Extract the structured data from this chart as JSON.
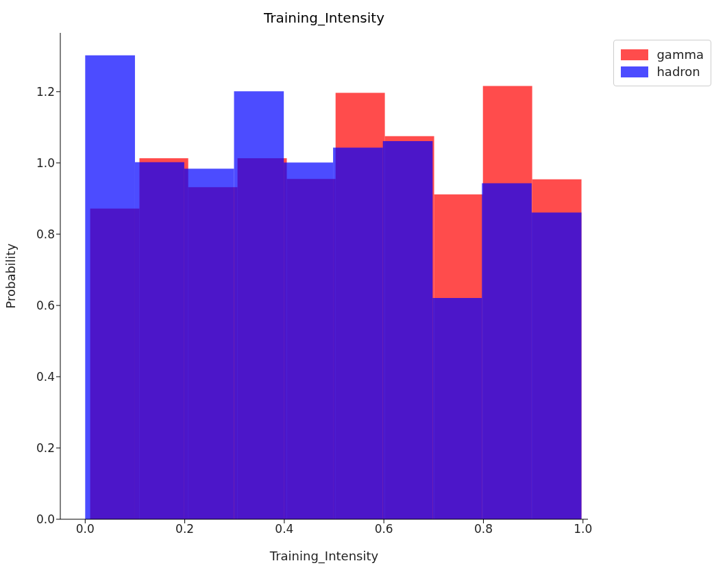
{
  "chart_data": {
    "type": "histogram",
    "title": "Training_Intensity",
    "xlabel": "Training_Intensity",
    "ylabel": "Probability",
    "xlim": [
      -0.05,
      1.01
    ],
    "ylim": [
      0,
      1.365
    ],
    "xticks": [
      {
        "value": 0,
        "label": "0.0"
      },
      0.2,
      0.4,
      0.6,
      0.8,
      {
        "value": 1,
        "label": "1.0"
      }
    ],
    "yticks": [
      {
        "value": 0,
        "label": "0.0"
      },
      0.2,
      0.4,
      0.6,
      0.8,
      {
        "value": 1,
        "label": "1.0"
      },
      1.2
    ],
    "grid": false,
    "legend": "top right",
    "bins": [
      0,
      0.1,
      0.199,
      0.299,
      0.399,
      0.498,
      0.598,
      0.698,
      0.797,
      0.897,
      0.997
    ],
    "series": [
      {
        "name": "gamma",
        "color": "#ff0000",
        "bins": [
          0.01,
          0.109,
          0.207,
          0.306,
          0.405,
          0.503,
          0.602,
          0.701,
          0.799,
          0.898,
          0.997
        ],
        "values": [
          0.872,
          1.013,
          0.932,
          1.013,
          0.955,
          1.197,
          1.075,
          0.912,
          1.216,
          0.954
        ]
      },
      {
        "name": "hadron",
        "color": "#0000ff",
        "values": [
          1.302,
          1.002,
          0.984,
          1.201,
          1.001,
          1.043,
          1.061,
          0.621,
          0.943,
          0.861
        ]
      }
    ]
  }
}
